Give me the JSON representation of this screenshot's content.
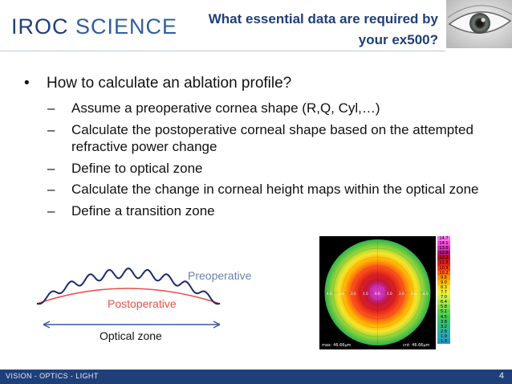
{
  "header": {
    "logo_iroc": "IROC",
    "logo_science": "SCIENCE",
    "title_line1": "What essential data are required by",
    "title_line2": "your ex500?"
  },
  "content": {
    "bullet": "How to calculate an ablation profile?",
    "sub_items": [
      "Assume a preoperative cornea shape (R,Q, Cyl,…)",
      "Calculate the postoperative corneal shape based on the attempted refractive power change",
      "Define to optical zone",
      "Calculate the change in corneal height maps within the optical zone",
      "Define a transition zone"
    ]
  },
  "diagram": {
    "preoperative": "Preoperative",
    "postoperative": "Postoperative",
    "optical_zone": "Optical zone",
    "colors": {
      "pre": "#1f2a6e",
      "post": "#e8504a",
      "arrow": "#3a5a9a"
    }
  },
  "map": {
    "axis_labels": [
      "4.0",
      "3.0",
      "2.0",
      "1.0",
      "0.0",
      "1.0",
      "2.0",
      "3.0",
      "4.0"
    ],
    "left_readout": "max: 46.66µm",
    "right_readout": "cnt: 46.66µm",
    "scale_values": [
      "14.7",
      "14.1",
      "13.5",
      "12.8",
      "12.2",
      "11.5",
      "10.9",
      "10.2",
      "9.6",
      "9.0",
      "8.3",
      "7.7",
      "7.0",
      "6.4",
      "5.8",
      "5.1",
      "4.5",
      "3.8",
      "3.2",
      "2.6",
      "1.9",
      "1.3"
    ]
  },
  "footer": {
    "text": "VISION - OPTICS - LIGHT",
    "page": "4"
  }
}
